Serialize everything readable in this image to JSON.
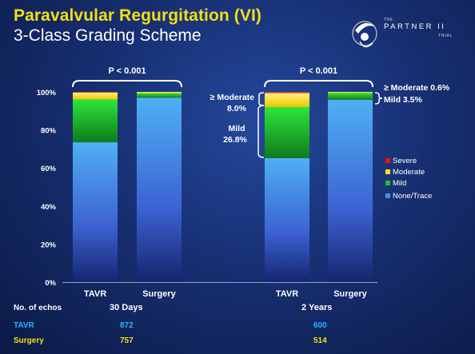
{
  "header": {
    "title": "Paravalvular Regurgitation (VI)",
    "subtitle": "3-Class Grading Scheme"
  },
  "logo": {
    "small_text": "THE",
    "main_text": "PARTNER II",
    "sub_text": "TRIAL"
  },
  "chart_data": {
    "type": "bar",
    "stacked": true,
    "ylim": [
      0,
      100
    ],
    "yticks": [
      "0%",
      "20%",
      "40%",
      "60%",
      "80%",
      "100%"
    ],
    "groups": [
      {
        "label": "30 Days",
        "categories": [
          "TAVR",
          "Surgery"
        ],
        "p_value": "P < 0.001"
      },
      {
        "label": "2 Years",
        "categories": [
          "TAVR",
          "Surgery"
        ],
        "p_value": "P < 0.001"
      }
    ],
    "categories": [
      "TAVR",
      "Surgery",
      "TAVR",
      "Surgery"
    ],
    "series": [
      {
        "name": "None/Trace",
        "color": "#4a90e8",
        "values": [
          73.5,
          97,
          65.2,
          95.9
        ]
      },
      {
        "name": "Mild",
        "color": "#22c02a",
        "values": [
          22.5,
          2.2,
          26.8,
          3.5
        ]
      },
      {
        "name": "Moderate",
        "color": "#f4e41c",
        "values": [
          3.7,
          0.8,
          7.4,
          0.6
        ]
      },
      {
        "name": "Severe",
        "color": "#ee1111",
        "values": [
          0.3,
          0,
          0.6,
          0
        ]
      }
    ],
    "legend": {
      "position": "right",
      "order": [
        "Severe",
        "Moderate",
        "Mild",
        "None/Trace"
      ]
    },
    "annotations": [
      {
        "text": "≥ Moderate 0.6%"
      },
      {
        "text": "Mild 3.5%"
      },
      {
        "text": "≥ Moderate"
      },
      {
        "text": "8.0%"
      },
      {
        "text": "Mild"
      },
      {
        "text": "26.8%"
      }
    ]
  },
  "table": {
    "header_label": "No. of echos",
    "rows": [
      {
        "label": "TAVR",
        "values": [
          "872",
          "600"
        ]
      },
      {
        "label": "Surgery",
        "values": [
          "757",
          "514"
        ]
      }
    ]
  }
}
